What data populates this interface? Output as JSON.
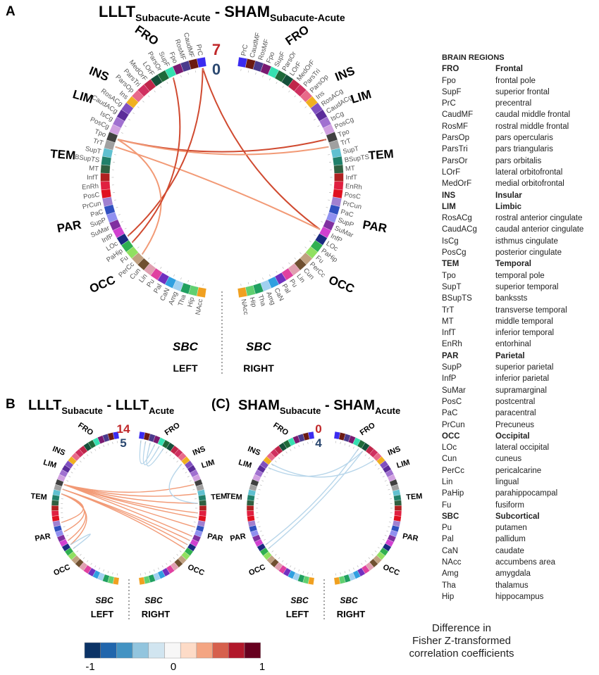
{
  "title": {
    "main": "LLLT",
    "main_sub": "Subacute-Acute",
    "sep": " - ",
    "second": "SHAM",
    "second_sub": "Subacute-Acute"
  },
  "panels": [
    {
      "id": "A",
      "letter": "A",
      "pos_count": "7",
      "neg_count": "0",
      "connections": [
        [
          "L",
          "PrC",
          "R",
          "InfP",
          1
        ],
        [
          "L",
          "Tpo",
          "R",
          "Tpo",
          1
        ],
        [
          "L",
          "Tpo",
          "R",
          "TrT",
          0.6
        ],
        [
          "L",
          "TrT",
          "R",
          "InfP",
          0.6
        ],
        [
          "L",
          "LOc",
          "L",
          "PrC",
          0.9
        ],
        [
          "L",
          "PerCc",
          "L",
          "Tpo",
          0.6
        ],
        [
          "L",
          "PaHip",
          "L",
          "SupF",
          0.8
        ]
      ]
    },
    {
      "id": "B",
      "letter": "B",
      "t1": "LLLT",
      "t1s": "Subacute",
      "sep": " - ",
      "t2": "LLLT",
      "t2s": "Acute",
      "pos_count": "14",
      "neg_count": "5",
      "connections": [
        [
          "L",
          "Tpo",
          "R",
          "Tpo",
          0.5
        ],
        [
          "L",
          "Tpo",
          "R",
          "SupT",
          0.5
        ],
        [
          "L",
          "Tpo",
          "R",
          "MT",
          0.5
        ],
        [
          "L",
          "Tpo",
          "R",
          "EnRh",
          0.5
        ],
        [
          "L",
          "Tpo",
          "R",
          "PosC",
          0.5
        ],
        [
          "L",
          "Tpo",
          "R",
          "PaC",
          0.5
        ],
        [
          "L",
          "Tpo",
          "R",
          "SuMar",
          0.5
        ],
        [
          "L",
          "TrT",
          "R",
          "InfP",
          0.5
        ],
        [
          "L",
          "TrT",
          "R",
          "LOc",
          0.5
        ],
        [
          "L",
          "TrT",
          "R",
          "PaHip",
          0.5
        ],
        [
          "L",
          "SupT",
          "L",
          "PrCun",
          0.5
        ],
        [
          "L",
          "SupT",
          "L",
          "SupP",
          0.5
        ],
        [
          "L",
          "SupT",
          "L",
          "InfP",
          0.5
        ],
        [
          "L",
          "SupT",
          "L",
          "LOc",
          0.5
        ],
        [
          "R",
          "PrC",
          "R",
          "Fpo",
          -0.3
        ],
        [
          "R",
          "CaudMF",
          "R",
          "SupF",
          -0.3
        ],
        [
          "R",
          "RosMF",
          "R",
          "ParsOr",
          -0.3
        ],
        [
          "R",
          "Ins",
          "R",
          "MT",
          -0.3
        ],
        [
          "L",
          "PaHip",
          "L",
          "LOc",
          -0.3
        ]
      ]
    },
    {
      "id": "C",
      "letter": "(C)",
      "t1": "SHAM",
      "t1s": "Subacute",
      "sep": " - ",
      "t2": "SHAM",
      "t2s": "Acute",
      "pos_count": "0",
      "neg_count": "4",
      "connections": [
        [
          "L",
          "Ins",
          "R",
          "ParsOp",
          -0.3
        ],
        [
          "L",
          "RosACg",
          "R",
          "LOrF",
          -0.3
        ],
        [
          "L",
          "LOc",
          "R",
          "ParsOr",
          -0.3
        ],
        [
          "L",
          "PaHip",
          "R",
          "LOrF",
          -0.3
        ]
      ]
    }
  ],
  "hemispheres": {
    "left": "LEFT",
    "right": "RIGHT"
  },
  "nodes": [
    "PrC",
    "CaudMF",
    "RosMF",
    "Fpo",
    "SupF",
    "ParsOr",
    "LOrF",
    "MedOrF",
    "ParsTri",
    "ParsOp",
    "Ins",
    "RosACg",
    "CaudACg",
    "IsCg",
    "PosCg",
    "Tpo",
    "TrT",
    "SupT",
    "BSupTS",
    "MT",
    "InfT",
    "EnRh",
    "PosC",
    "PrCun",
    "PaC",
    "SupP",
    "SuMar",
    "InfP",
    "LOc",
    "PaHip",
    "Fu",
    "PerCc",
    "Cun",
    "Lin",
    "Pu",
    "Pal",
    "CaN",
    "Amg",
    "Tha",
    "Hip",
    "NAcc"
  ],
  "node_colors": [
    "#3b2bf0",
    "#6b1a12",
    "#4a3a8c",
    "#7a1a70",
    "#35e0b0",
    "#1f6a3a",
    "#15503a",
    "#c0264a",
    "#d03060",
    "#e86a8a",
    "#f0b020",
    "#8050c0",
    "#5b2c9a",
    "#a070d0",
    "#d0a0e0",
    "#404040",
    "#a0a0a0",
    "#60c0d0",
    "#20806a",
    "#306040",
    "#b02020",
    "#e02040",
    "#e01020",
    "#a080d0",
    "#3050c0",
    "#9090f0",
    "#8030a0",
    "#d040d0",
    "#1a2a80",
    "#30b050",
    "#90e060",
    "#c0a080",
    "#705030",
    "#e0a0b0",
    "#e040a0",
    "#7030c0",
    "#30a0e0",
    "#a0d0f0",
    "#20a060",
    "#60d070",
    "#f0a020"
  ],
  "regions": [
    {
      "key": "FRO",
      "start": 0,
      "end": 9
    },
    {
      "key": "INS",
      "start": 10,
      "end": 10
    },
    {
      "key": "LIM",
      "start": 11,
      "end": 14
    },
    {
      "key": "TEM",
      "start": 15,
      "end": 21
    },
    {
      "key": "PAR",
      "start": 22,
      "end": 27
    },
    {
      "key": "OCC",
      "start": 28,
      "end": 33
    },
    {
      "key": "SBC",
      "start": 34,
      "end": 40
    }
  ],
  "legend": {
    "header": "BRAIN REGIONS",
    "rows": [
      [
        "FRO",
        "Frontal",
        true
      ],
      [
        "Fpo",
        "frontal pole",
        false
      ],
      [
        "SupF",
        "superior frontal",
        false
      ],
      [
        "PrC",
        "precentral",
        false
      ],
      [
        "CaudMF",
        "caudal middle frontal",
        false
      ],
      [
        "RosMF",
        "rostral middle frontal",
        false
      ],
      [
        "ParsOp",
        "pars opercularis",
        false
      ],
      [
        "ParsTri",
        "pars triangularis",
        false
      ],
      [
        "ParsOr",
        "pars orbitalis",
        false
      ],
      [
        "LOrF",
        "lateral orbitofrontal",
        false
      ],
      [
        "MedOrF",
        "medial orbitofrontal",
        false
      ],
      [
        "INS",
        "Insular",
        true
      ],
      [
        "LIM",
        "Limbic",
        true
      ],
      [
        "RosACg",
        "rostral anterior cingulate",
        false
      ],
      [
        "CaudACg",
        "caudal anterior cingulate",
        false
      ],
      [
        "IsCg",
        "isthmus cingulate",
        false
      ],
      [
        "PosCg",
        "posterior cingulate",
        false
      ],
      [
        "TEM",
        "Temporal",
        true
      ],
      [
        "Tpo",
        "temporal pole",
        false
      ],
      [
        "SupT",
        "superior temporal",
        false
      ],
      [
        "BSupTS",
        "bankssts",
        false
      ],
      [
        "TrT",
        "transverse temporal",
        false
      ],
      [
        "MT",
        "middle temporal",
        false
      ],
      [
        "InfT",
        "inferior temporal",
        false
      ],
      [
        "EnRh",
        "entorhinal",
        false
      ],
      [
        "PAR",
        "Parietal",
        true
      ],
      [
        "SupP",
        "superior parietal",
        false
      ],
      [
        "InfP",
        "inferior parietal",
        false
      ],
      [
        "SuMar",
        "supramarginal",
        false
      ],
      [
        "PosC",
        "postcentral",
        false
      ],
      [
        "PaC",
        "paracentral",
        false
      ],
      [
        "PrCun",
        "Precuneus",
        false
      ],
      [
        "OCC",
        "Occipital",
        true
      ],
      [
        "LOc",
        "lateral occipital",
        false
      ],
      [
        "Cun",
        "cuneus",
        false
      ],
      [
        "PerCc",
        "pericalcarine",
        false
      ],
      [
        "Lin",
        "lingual",
        false
      ],
      [
        "PaHip",
        "parahippocampal",
        false
      ],
      [
        "Fu",
        "fusiform",
        false
      ],
      [
        "SBC",
        "Subcortical",
        true
      ],
      [
        "Pu",
        "putamen",
        false
      ],
      [
        "Pal",
        "pallidum",
        false
      ],
      [
        "CaN",
        "caudate",
        false
      ],
      [
        "NAcc",
        "accumbens area",
        false
      ],
      [
        "Amg",
        "amygdala",
        false
      ],
      [
        "Tha",
        "thalamus",
        false
      ],
      [
        "Hip",
        "hippocampus",
        false
      ]
    ]
  },
  "colorbar": {
    "colors": [
      "#0b3366",
      "#2166ac",
      "#4393c3",
      "#92c5de",
      "#d1e5f0",
      "#f7f7f7",
      "#fddbc7",
      "#f4a582",
      "#d6604d",
      "#b2182b",
      "#67001f"
    ],
    "min_label": "-1",
    "mid_label": "0",
    "max_label": "1",
    "title_lines": [
      "Difference in",
      "Fisher Z-transformed",
      "correlation coefficients"
    ]
  },
  "colors": {
    "positive": "#e05030",
    "positive_light": "#f4a582",
    "negative": "#92c5de",
    "pos_count": "#c0282a",
    "neg_count": "#2b4870"
  }
}
